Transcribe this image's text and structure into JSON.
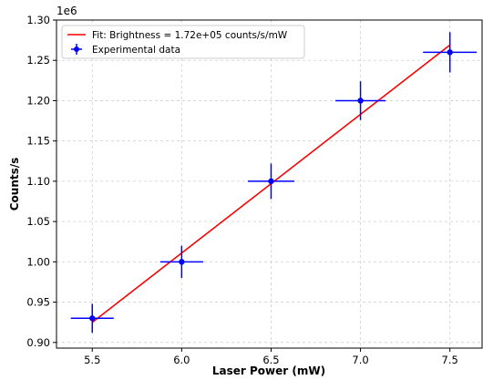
{
  "chart_data": {
    "type": "scatter",
    "title": "",
    "xlabel": "Laser Power (mW)",
    "ylabel": "Counts/s",
    "offset_label": "1e6",
    "xlim": [
      5.3,
      7.68
    ],
    "ylim": [
      0.893,
      1.3
    ],
    "x_ticks": [
      5.5,
      6.0,
      6.5,
      7.0,
      7.5
    ],
    "x_tick_labels": [
      "5.5",
      "6.0",
      "6.5",
      "7.0",
      "7.5"
    ],
    "y_ticks": [
      0.9,
      0.95,
      1.0,
      1.05,
      1.1,
      1.15,
      1.2,
      1.25,
      1.3
    ],
    "y_tick_labels": [
      "0.90",
      "0.95",
      "1.00",
      "1.05",
      "1.10",
      "1.15",
      "1.20",
      "1.25",
      "1.30"
    ],
    "grid": true,
    "legend_position": "top-left",
    "series": [
      {
        "name": "Experimental data",
        "kind": "errorbar",
        "color": "#0000ff",
        "x": [
          5.5,
          6.0,
          6.5,
          7.0,
          7.5
        ],
        "y": [
          0.93,
          1.0,
          1.1,
          1.2,
          1.26
        ],
        "xerr": [
          0.12,
          0.12,
          0.13,
          0.14,
          0.15
        ],
        "yerr": [
          0.018,
          0.02,
          0.022,
          0.024,
          0.025
        ]
      },
      {
        "name": "Fit: Brightness = 1.72e+05 counts/s/mW",
        "kind": "line",
        "color": "#ff0000",
        "x": [
          5.5,
          7.5
        ],
        "y": [
          0.925,
          1.269
        ]
      }
    ]
  }
}
